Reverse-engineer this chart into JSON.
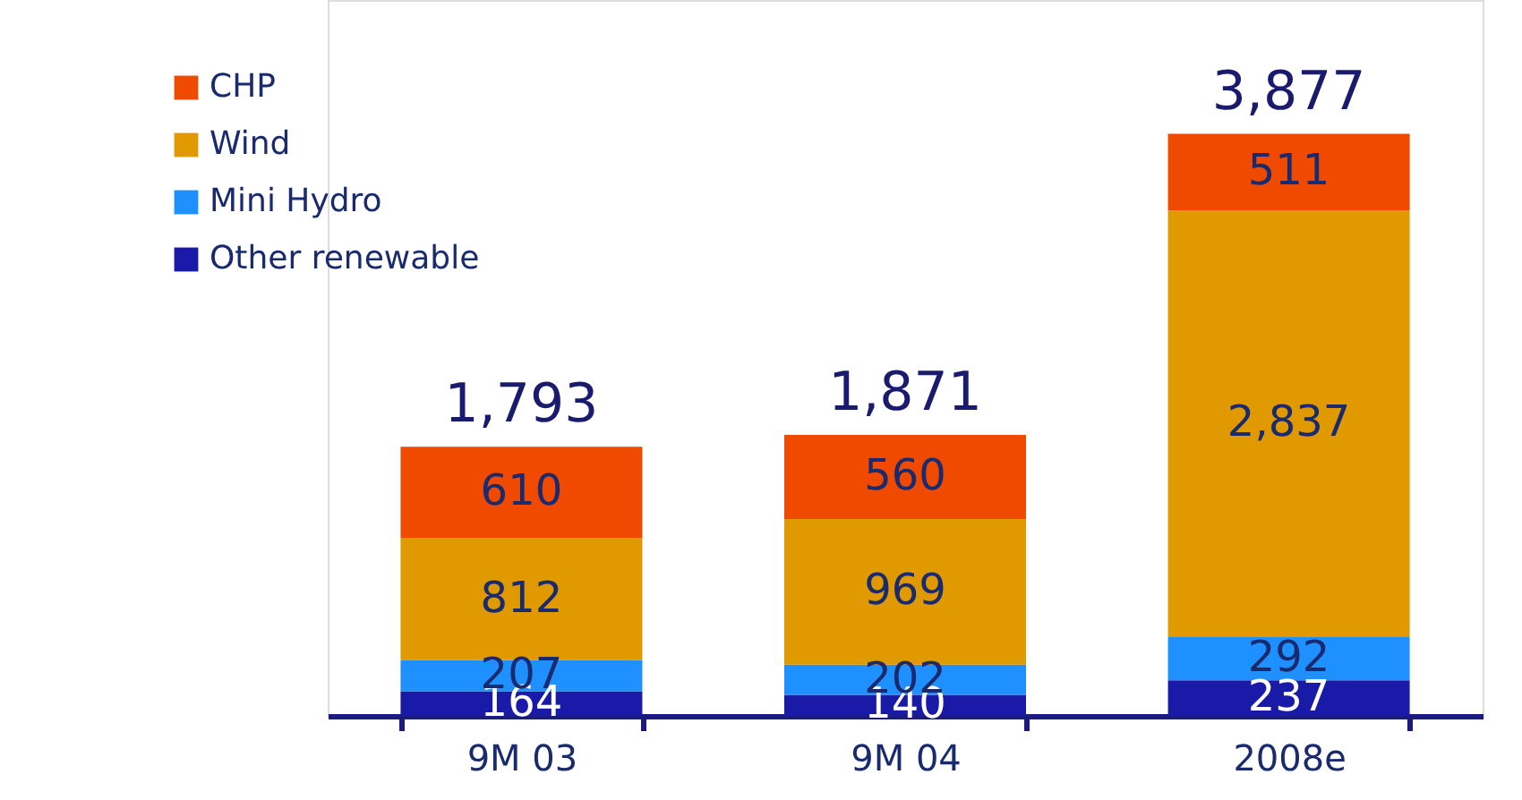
{
  "chart_data": {
    "type": "bar",
    "stacked": true,
    "legend": "top left",
    "grid": false,
    "categories": [
      "9M 03",
      "9M 04",
      "2008e"
    ],
    "series": [
      {
        "name": "Other renewable",
        "color": "#1a1aa8",
        "values": [
          164,
          140,
          237
        ],
        "value_labels": [
          "164",
          "140",
          "237"
        ]
      },
      {
        "name": "Mini Hydro",
        "color": "#1e90ff",
        "values": [
          207,
          202,
          292
        ],
        "value_labels": [
          "207",
          "202",
          "292"
        ]
      },
      {
        "name": "Wind",
        "color": "#e09a00",
        "values": [
          812,
          969,
          2837
        ],
        "value_labels": [
          "812",
          "969",
          "2,837"
        ]
      },
      {
        "name": "CHP",
        "color": "#f04a00",
        "values": [
          610,
          560,
          511
        ],
        "value_labels": [
          "610",
          "560",
          "511"
        ]
      }
    ],
    "totals": [
      "1,793",
      "1,871",
      "3,877"
    ]
  }
}
